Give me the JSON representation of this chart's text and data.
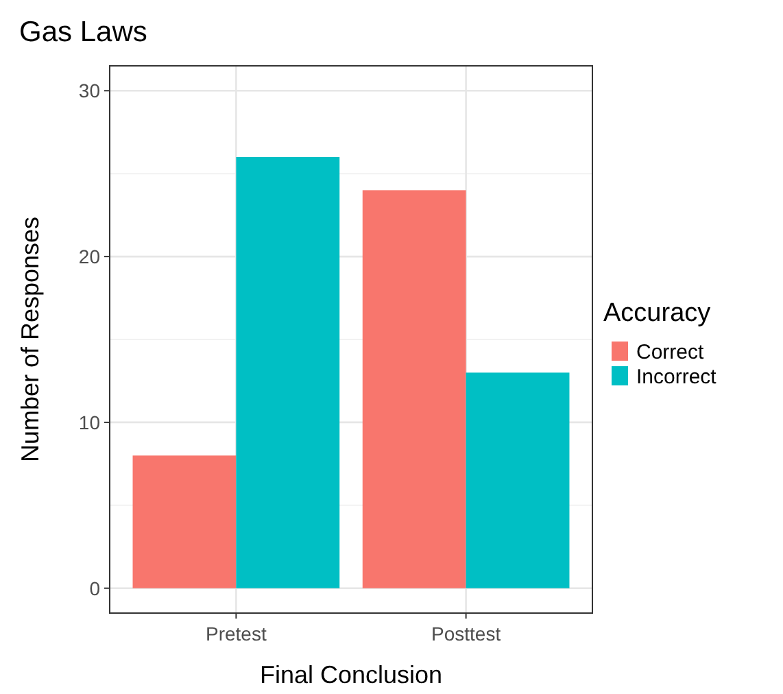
{
  "chart_data": {
    "type": "bar",
    "title": "Gas Laws",
    "xlabel": "Final Conclusion",
    "ylabel": "Number of Responses",
    "legend_title": "Accuracy",
    "categories": [
      "Pretest",
      "Posttest"
    ],
    "series": [
      {
        "name": "Correct",
        "color": "#f8766d",
        "values": [
          8,
          24
        ]
      },
      {
        "name": "Incorrect",
        "color": "#00bfc4",
        "values": [
          26,
          13
        ]
      }
    ],
    "ylim": [
      -1.5,
      31.5
    ],
    "yticks": [
      0,
      10,
      20,
      30
    ],
    "grid": true,
    "legend": "right"
  }
}
